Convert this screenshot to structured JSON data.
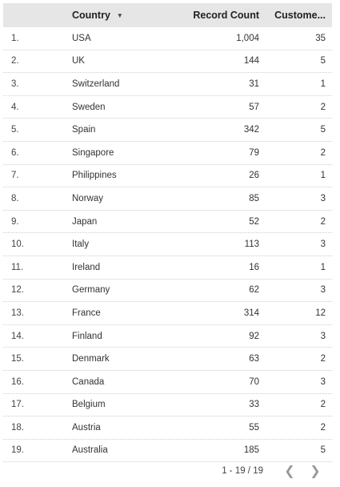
{
  "table": {
    "headers": {
      "country": "Country",
      "record_count": "Record Count",
      "customers": "Custome..."
    },
    "sort_icon": "sort-desc-icon",
    "rows": [
      {
        "idx": "1.",
        "country": "USA",
        "record_count": "1,004",
        "customers": "35"
      },
      {
        "idx": "2.",
        "country": "UK",
        "record_count": "144",
        "customers": "5"
      },
      {
        "idx": "3.",
        "country": "Switzerland",
        "record_count": "31",
        "customers": "1"
      },
      {
        "idx": "4.",
        "country": "Sweden",
        "record_count": "57",
        "customers": "2"
      },
      {
        "idx": "5.",
        "country": "Spain",
        "record_count": "342",
        "customers": "5"
      },
      {
        "idx": "6.",
        "country": "Singapore",
        "record_count": "79",
        "customers": "2"
      },
      {
        "idx": "7.",
        "country": "Philippines",
        "record_count": "26",
        "customers": "1"
      },
      {
        "idx": "8.",
        "country": "Norway",
        "record_count": "85",
        "customers": "3"
      },
      {
        "idx": "9.",
        "country": "Japan",
        "record_count": "52",
        "customers": "2"
      },
      {
        "idx": "10.",
        "country": "Italy",
        "record_count": "113",
        "customers": "3"
      },
      {
        "idx": "11.",
        "country": "Ireland",
        "record_count": "16",
        "customers": "1"
      },
      {
        "idx": "12.",
        "country": "Germany",
        "record_count": "62",
        "customers": "3"
      },
      {
        "idx": "13.",
        "country": "France",
        "record_count": "314",
        "customers": "12"
      },
      {
        "idx": "14.",
        "country": "Finland",
        "record_count": "92",
        "customers": "3"
      },
      {
        "idx": "15.",
        "country": "Denmark",
        "record_count": "63",
        "customers": "2"
      },
      {
        "idx": "16.",
        "country": "Canada",
        "record_count": "70",
        "customers": "3"
      },
      {
        "idx": "17.",
        "country": "Belgium",
        "record_count": "33",
        "customers": "2"
      },
      {
        "idx": "18.",
        "country": "Austria",
        "record_count": "55",
        "customers": "2"
      },
      {
        "idx": "19.",
        "country": "Australia",
        "record_count": "185",
        "customers": "5"
      }
    ]
  },
  "pagination": {
    "range_text": "1 - 19 / 19",
    "prev_icon": "chevron-left-icon",
    "next_icon": "chevron-right-icon"
  }
}
